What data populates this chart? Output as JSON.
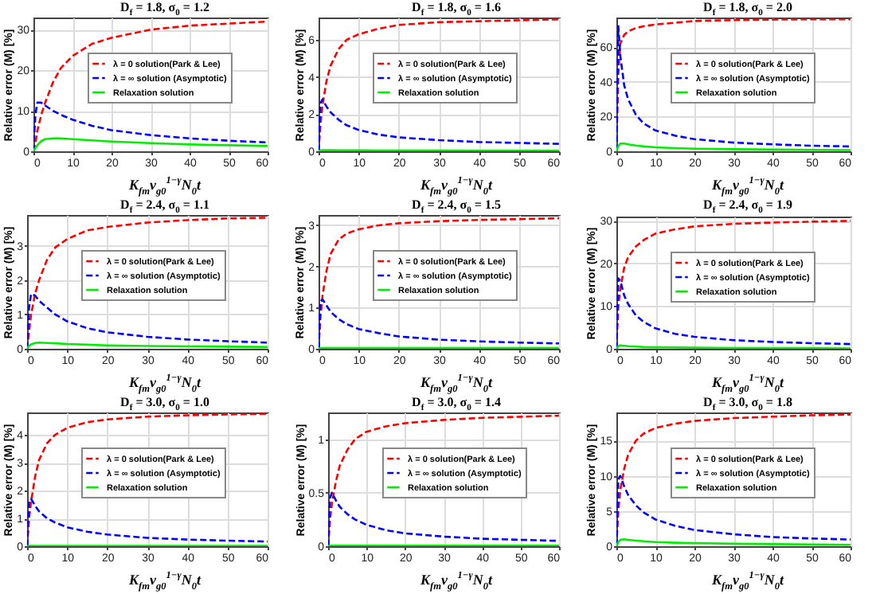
{
  "chart_data": [
    {
      "type": "line",
      "title": "D$_{f}$ = 1.8, σ$_{0}$ = 1.2",
      "xlabel": "K$_{fm}$v$_{g0}$$^{1−γ}$N$_{0}$t",
      "ylabel": "Relative error (M) [%]",
      "x": [
        0,
        0.5,
        1,
        2,
        3,
        5,
        7,
        10,
        15,
        20,
        30,
        40,
        50,
        60
      ],
      "xlim": [
        0,
        60
      ],
      "xticks": [
        0,
        10,
        20,
        30,
        40,
        50,
        60
      ],
      "ylim": [
        0,
        33
      ],
      "yticks": [
        0,
        10,
        20,
        30
      ],
      "grid": true,
      "legend": "right",
      "series": [
        {
          "name": "λ = 0 solution(Park & Lee)",
          "color": "#ff0000",
          "line_style": "dashed",
          "values": [
            0,
            2,
            5,
            9,
            12,
            17,
            20.5,
            23.5,
            26.5,
            28,
            30,
            31,
            31.5,
            32
          ]
        },
        {
          "name": "λ = ∞ solution (Asymptotic)",
          "color": "#0000ff",
          "line_style": "dashed",
          "values": [
            0,
            9,
            12,
            12,
            11.3,
            10,
            9,
            7.8,
            6.3,
            5.2,
            4,
            3.2,
            2.6,
            2.2
          ]
        },
        {
          "name": "Relaxation solution",
          "color": "#00ee00",
          "line_style": "solid",
          "values": [
            0,
            0.8,
            1.5,
            2.5,
            3,
            3.2,
            3.2,
            3,
            2.7,
            2.4,
            2,
            1.7,
            1.5,
            1.3
          ]
        }
      ]
    },
    {
      "type": "line",
      "title": "D$_{f}$ = 1.8, σ$_{0}$ = 1.6",
      "xlabel": "K$_{fm}$v$_{g0}$$^{1−γ}$N$_{0}$t",
      "ylabel": "Relative error (M) [%]",
      "x": [
        0,
        0.5,
        1,
        2,
        3,
        5,
        7,
        10,
        15,
        20,
        30,
        40,
        50,
        60
      ],
      "xlim": [
        0,
        60
      ],
      "xticks": [
        0,
        10,
        20,
        30,
        40,
        50,
        60
      ],
      "ylim": [
        0,
        7.2
      ],
      "yticks": [
        0,
        2,
        4,
        6
      ],
      "grid": true,
      "legend": "right",
      "series": [
        {
          "name": "λ = 0 solution(Park & Lee)",
          "color": "#ff0000",
          "line_style": "dashed",
          "values": [
            0,
            1.5,
            2.5,
            3.8,
            4.6,
            5.5,
            6,
            6.3,
            6.6,
            6.8,
            6.95,
            7,
            7.05,
            7.1
          ]
        },
        {
          "name": "λ = ∞ solution (Asymptotic)",
          "color": "#0000ff",
          "line_style": "dashed",
          "values": [
            0,
            2.6,
            2.8,
            2.4,
            2.1,
            1.7,
            1.4,
            1.15,
            0.9,
            0.75,
            0.6,
            0.5,
            0.45,
            0.4
          ]
        },
        {
          "name": "Relaxation solution",
          "color": "#00ee00",
          "line_style": "solid",
          "values": [
            0,
            0.05,
            0.06,
            0.06,
            0.06,
            0.05,
            0.05,
            0.05,
            0.04,
            0.04,
            0.04,
            0.03,
            0.03,
            0.03
          ]
        }
      ]
    },
    {
      "type": "line",
      "title": "D$_{f}$ = 1.8, σ$_{0}$ = 2.0",
      "xlabel": "K$_{fm}$v$_{g0}$$^{1−γ}$N$_{0}$t",
      "ylabel": "Relative error (M) [%]",
      "x": [
        0,
        0.5,
        1,
        2,
        3,
        5,
        7,
        10,
        15,
        20,
        30,
        40,
        50,
        60
      ],
      "xlim": [
        0,
        60
      ],
      "xticks": [
        0,
        10,
        20,
        30,
        40,
        50,
        60
      ],
      "ylim": [
        0,
        77
      ],
      "yticks": [
        0,
        20,
        40,
        60
      ],
      "grid": true,
      "legend": "right",
      "series": [
        {
          "name": "λ = 0 solution(Park & Lee)",
          "color": "#ff0000",
          "line_style": "dashed",
          "values": [
            0,
            45,
            62,
            67,
            69,
            71,
            72,
            73,
            74,
            75,
            75.5,
            75.8,
            76,
            76
          ]
        },
        {
          "name": "λ = ∞ solution (Asymptotic)",
          "color": "#0000ff",
          "line_style": "dashed",
          "values": [
            0,
            72,
            55,
            38,
            30,
            21,
            16,
            12,
            9,
            7,
            5,
            4,
            3.2,
            2.8
          ]
        },
        {
          "name": "Relaxation solution",
          "color": "#00ee00",
          "line_style": "solid",
          "values": [
            0,
            3,
            4.5,
            4.5,
            4,
            3.3,
            2.8,
            2.3,
            1.8,
            1.5,
            1.2,
            1,
            0.8,
            0.7
          ]
        }
      ]
    },
    {
      "type": "line",
      "title": "D$_{f}$ = 2.4, σ$_{0}$ = 1.1",
      "xlabel": "K$_{fm}$v$_{g0}$$^{1−γ}$N$_{0}$t",
      "ylabel": "Relative error (M) [%]",
      "x": [
        0,
        0.5,
        1,
        2,
        3,
        5,
        7,
        10,
        15,
        20,
        30,
        40,
        50,
        60
      ],
      "xlim": [
        0,
        60
      ],
      "xticks": [
        0,
        10,
        20,
        30,
        40,
        50,
        60
      ],
      "ylim": [
        0,
        3.9
      ],
      "yticks": [
        0,
        1,
        2,
        3
      ],
      "grid": true,
      "legend": "right",
      "series": [
        {
          "name": "λ = 0 solution(Park & Lee)",
          "color": "#ff0000",
          "line_style": "dashed",
          "values": [
            0,
            0.5,
            1,
            1.6,
            2,
            2.6,
            2.95,
            3.2,
            3.45,
            3.55,
            3.68,
            3.75,
            3.8,
            3.82
          ]
        },
        {
          "name": "λ = ∞ solution (Asymptotic)",
          "color": "#0000ff",
          "line_style": "dashed",
          "values": [
            0,
            1.2,
            1.6,
            1.55,
            1.4,
            1.2,
            1,
            0.8,
            0.6,
            0.48,
            0.35,
            0.27,
            0.22,
            0.18
          ]
        },
        {
          "name": "Relaxation solution",
          "color": "#00ee00",
          "line_style": "solid",
          "values": [
            0,
            0.08,
            0.13,
            0.17,
            0.18,
            0.17,
            0.16,
            0.14,
            0.12,
            0.1,
            0.08,
            0.07,
            0.06,
            0.05
          ]
        }
      ]
    },
    {
      "type": "line",
      "title": "D$_{f}$ = 2.4, σ$_{0}$ = 1.5",
      "xlabel": "K$_{fm}$v$_{g0}$$^{1−γ}$N$_{0}$t",
      "ylabel": "Relative error (M) [%]",
      "x": [
        0,
        0.5,
        1,
        2,
        3,
        5,
        7,
        10,
        15,
        20,
        30,
        40,
        50,
        60
      ],
      "xlim": [
        0,
        60
      ],
      "xticks": [
        0,
        10,
        20,
        30,
        40,
        50,
        60
      ],
      "ylim": [
        0,
        3.25
      ],
      "yticks": [
        0,
        1,
        2,
        3
      ],
      "grid": true,
      "legend": "right",
      "series": [
        {
          "name": "λ = 0 solution(Park & Lee)",
          "color": "#ff0000",
          "line_style": "dashed",
          "values": [
            0,
            0.8,
            1.3,
            1.9,
            2.3,
            2.65,
            2.8,
            2.9,
            3,
            3.05,
            3.1,
            3.13,
            3.15,
            3.17
          ]
        },
        {
          "name": "λ = ∞ solution (Asymptotic)",
          "color": "#0000ff",
          "line_style": "dashed",
          "values": [
            0,
            1.15,
            1.2,
            1.05,
            0.9,
            0.72,
            0.6,
            0.48,
            0.38,
            0.3,
            0.22,
            0.18,
            0.15,
            0.13
          ]
        },
        {
          "name": "Relaxation solution",
          "color": "#00ee00",
          "line_style": "solid",
          "values": [
            0,
            0.02,
            0.02,
            0.02,
            0.02,
            0.02,
            0.02,
            0.02,
            0.02,
            0.02,
            0.02,
            0.02,
            0.02,
            0.02
          ]
        }
      ]
    },
    {
      "type": "line",
      "title": "D$_{f}$ = 2.4, σ$_{0}$ = 1.9",
      "xlabel": "K$_{fm}$v$_{g0}$$^{1−γ}$N$_{0}$t",
      "ylabel": "Relative error (M) [%]",
      "x": [
        0,
        0.5,
        1,
        2,
        3,
        5,
        7,
        10,
        15,
        20,
        30,
        40,
        50,
        60
      ],
      "xlim": [
        0,
        60
      ],
      "xticks": [
        0,
        10,
        20,
        30,
        40,
        50,
        60
      ],
      "ylim": [
        0,
        31
      ],
      "yticks": [
        0,
        10,
        20,
        30
      ],
      "grid": true,
      "legend": "right",
      "series": [
        {
          "name": "λ = 0 solution(Park & Lee)",
          "color": "#ff0000",
          "line_style": "dashed",
          "values": [
            0,
            10,
            14,
            19,
            21.5,
            24,
            25.5,
            27,
            28,
            28.7,
            29.3,
            29.6,
            29.8,
            30
          ]
        },
        {
          "name": "λ = ∞ solution (Asymptotic)",
          "color": "#0000ff",
          "line_style": "dashed",
          "values": [
            0,
            16.5,
            16,
            12.5,
            10.5,
            7.8,
            6.3,
            4.8,
            3.5,
            2.8,
            2,
            1.6,
            1.3,
            1.1
          ]
        },
        {
          "name": "Relaxation solution",
          "color": "#00ee00",
          "line_style": "solid",
          "values": [
            0,
            0.6,
            0.8,
            0.7,
            0.6,
            0.5,
            0.4,
            0.35,
            0.3,
            0.25,
            0.2,
            0.15,
            0.12,
            0.1
          ]
        }
      ]
    },
    {
      "type": "line",
      "title": "D$_{f}$ = 3.0, σ$_{0}$ = 1.0",
      "xlabel": "K$_{fm}$v$_{g0}$$^{1−γ}$N$_{0}$t",
      "ylabel": "Relative error (M) [%]",
      "x": [
        0,
        0.5,
        1,
        2,
        3,
        5,
        7,
        10,
        15,
        20,
        30,
        40,
        50,
        60
      ],
      "xlim": [
        0,
        60
      ],
      "xticks": [
        0,
        10,
        20,
        30,
        40,
        50,
        60
      ],
      "ylim": [
        0,
        4.8
      ],
      "yticks": [
        0,
        1,
        2,
        3,
        4
      ],
      "grid": true,
      "legend": "right",
      "series": [
        {
          "name": "λ = 0 solution(Park & Lee)",
          "color": "#ff0000",
          "line_style": "dashed",
          "values": [
            0,
            1,
            1.6,
            2.5,
            3.1,
            3.7,
            4,
            4.25,
            4.45,
            4.55,
            4.65,
            4.7,
            4.73,
            4.75
          ]
        },
        {
          "name": "λ = ∞ solution (Asymptotic)",
          "color": "#0000ff",
          "line_style": "dashed",
          "values": [
            0,
            1.6,
            1.7,
            1.45,
            1.25,
            1,
            0.85,
            0.68,
            0.52,
            0.42,
            0.3,
            0.24,
            0.2,
            0.17
          ]
        },
        {
          "name": "Relaxation solution",
          "color": "#00ee00",
          "line_style": "solid",
          "values": [
            0,
            0.01,
            0.01,
            0.01,
            0.01,
            0.01,
            0.01,
            0.01,
            0.01,
            0.01,
            0.01,
            0.01,
            0.01,
            0.01
          ]
        }
      ]
    },
    {
      "type": "line",
      "title": "D$_{f}$ = 3.0, σ$_{0}$ = 1.4",
      "xlabel": "K$_{fm}$v$_{g0}$$^{1−γ}$N$_{0}$t",
      "ylabel": "Relative error (M) [%]",
      "x": [
        0,
        0.5,
        1,
        2,
        3,
        5,
        7,
        10,
        15,
        20,
        30,
        40,
        50,
        60
      ],
      "xlim": [
        0,
        60
      ],
      "xticks": [
        0,
        10,
        20,
        30,
        40,
        50,
        60
      ],
      "ylim": [
        0,
        1.25
      ],
      "yticks": [
        0,
        0.5,
        1
      ],
      "grid": true,
      "legend": "right",
      "series": [
        {
          "name": "λ = 0 solution(Park & Lee)",
          "color": "#ff0000",
          "line_style": "dashed",
          "values": [
            0,
            0.25,
            0.4,
            0.6,
            0.75,
            0.9,
            1,
            1.07,
            1.12,
            1.15,
            1.18,
            1.2,
            1.21,
            1.22
          ]
        },
        {
          "name": "λ = ∞ solution (Asymptotic)",
          "color": "#0000ff",
          "line_style": "dashed",
          "values": [
            0,
            0.45,
            0.5,
            0.43,
            0.37,
            0.3,
            0.25,
            0.2,
            0.15,
            0.12,
            0.09,
            0.07,
            0.06,
            0.05
          ]
        },
        {
          "name": "Relaxation solution",
          "color": "#00ee00",
          "line_style": "solid",
          "values": [
            0,
            0.005,
            0.005,
            0.005,
            0.005,
            0.005,
            0.005,
            0.005,
            0.005,
            0.005,
            0.005,
            0.005,
            0.005,
            0.005
          ]
        }
      ]
    },
    {
      "type": "line",
      "title": "D$_{f}$ = 3.0, σ$_{0}$ = 1.8",
      "xlabel": "K$_{fm}$v$_{g0}$$^{1−γ}$N$_{0}$t",
      "ylabel": "Relative error (M) [%]",
      "x": [
        0,
        0.5,
        1,
        2,
        3,
        5,
        7,
        10,
        15,
        20,
        30,
        40,
        50,
        60
      ],
      "xlim": [
        0,
        60
      ],
      "xticks": [
        0,
        10,
        20,
        30,
        40,
        50,
        60
      ],
      "ylim": [
        0,
        19
      ],
      "yticks": [
        0,
        5,
        10,
        15
      ],
      "grid": true,
      "legend": "right",
      "series": [
        {
          "name": "λ = 0 solution(Park & Lee)",
          "color": "#ff0000",
          "line_style": "dashed",
          "values": [
            0,
            5,
            8,
            11,
            13,
            15,
            16,
            16.8,
            17.4,
            17.8,
            18.2,
            18.4,
            18.6,
            18.7
          ]
        },
        {
          "name": "λ = ∞ solution (Asymptotic)",
          "color": "#0000ff",
          "line_style": "dashed",
          "values": [
            0,
            9.5,
            10,
            8.5,
            7.3,
            5.8,
            4.8,
            3.8,
            2.9,
            2.3,
            1.7,
            1.3,
            1.1,
            0.95
          ]
        },
        {
          "name": "Relaxation solution",
          "color": "#00ee00",
          "line_style": "solid",
          "values": [
            0,
            0.6,
            0.9,
            1,
            0.9,
            0.8,
            0.7,
            0.6,
            0.5,
            0.45,
            0.35,
            0.3,
            0.25,
            0.2
          ]
        }
      ]
    }
  ]
}
